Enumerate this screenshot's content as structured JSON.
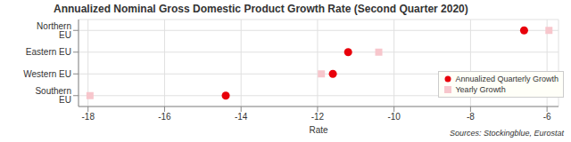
{
  "chart_data": {
    "type": "scatter",
    "title": "Annualized Nominal Gross Domestic Product Growth Rate (Second Quarter 2020)",
    "x_label": "Rate",
    "source": "Sources: Stockingblue, Eurostat",
    "categories": [
      "Northern EU",
      "Eastern EU",
      "Western EU",
      "Southern EU"
    ],
    "series": [
      {
        "name": "Annualized Quarterly Growth",
        "color": "#e8000b",
        "marker": "circle",
        "values": [
          -6.6,
          -11.2,
          -11.6,
          -14.4
        ]
      },
      {
        "name": "Yearly Growth",
        "color": "#f7c6cc",
        "marker": "square",
        "values": [
          -5.95,
          -10.4,
          -11.9,
          -17.95
        ]
      }
    ],
    "xlim": [
      -18.25,
      -5.7
    ],
    "xticks": [
      -18,
      -16,
      -14,
      -12,
      -10,
      -8,
      -6
    ],
    "grid": true,
    "legend": "lower right"
  }
}
